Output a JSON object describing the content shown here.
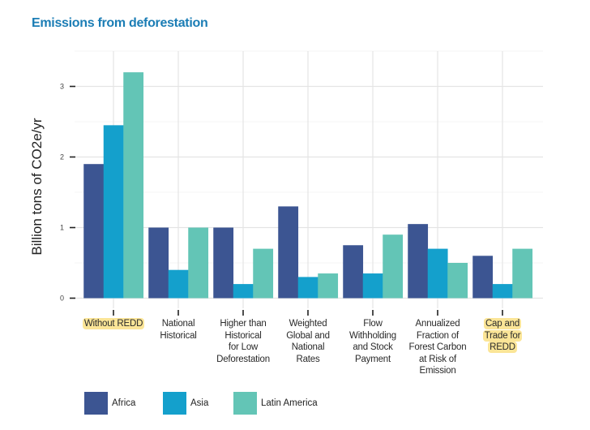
{
  "title": "Emissions from deforestation",
  "chart_data": {
    "type": "bar",
    "title": "Emissions from deforestation",
    "xlabel": "",
    "ylabel": "Billion tons of CO2e/yr",
    "ylim": [
      0,
      3.5
    ],
    "yticks": [
      0,
      1,
      2,
      3
    ],
    "grid": true,
    "legend_position": "bottom-left",
    "categories": [
      "Without REDD",
      "National Historical",
      "Higher than Historical for Low Deforestation",
      "Weighted Global and National Rates",
      "Flow Withholding and Stock Payment",
      "Annualized Fraction of Forest Carbon at Risk of Emission",
      "Cap and Trade for REDD"
    ],
    "category_label_lines": [
      [
        "Without REDD"
      ],
      [
        "National",
        "Historical"
      ],
      [
        "Higher than",
        "Historical",
        "for Low",
        "Deforestation"
      ],
      [
        "Weighted",
        "Global and",
        "National",
        "Rates"
      ],
      [
        "Flow",
        "Withholding",
        "and Stock",
        "Payment"
      ],
      [
        "Annualized",
        "Fraction of",
        "Forest Carbon",
        "at Risk of",
        "Emission"
      ],
      [
        "Cap and",
        "Trade for",
        "REDD"
      ]
    ],
    "highlighted_categories": [
      0,
      6
    ],
    "series": [
      {
        "name": "Africa",
        "color": "#3c5592",
        "values": [
          1.9,
          1.0,
          1.0,
          1.3,
          0.75,
          1.05,
          0.6
        ]
      },
      {
        "name": "Asia",
        "color": "#14a0cc",
        "values": [
          2.45,
          0.4,
          0.2,
          0.3,
          0.35,
          0.7,
          0.2
        ]
      },
      {
        "name": "Latin America",
        "color": "#63c5b6",
        "values": [
          3.2,
          1.0,
          0.7,
          0.35,
          0.9,
          0.5,
          0.7
        ]
      }
    ]
  },
  "colors": {
    "title": "#1b7db5",
    "highlight": "#fbe597",
    "grid": "#e4e4e4"
  }
}
